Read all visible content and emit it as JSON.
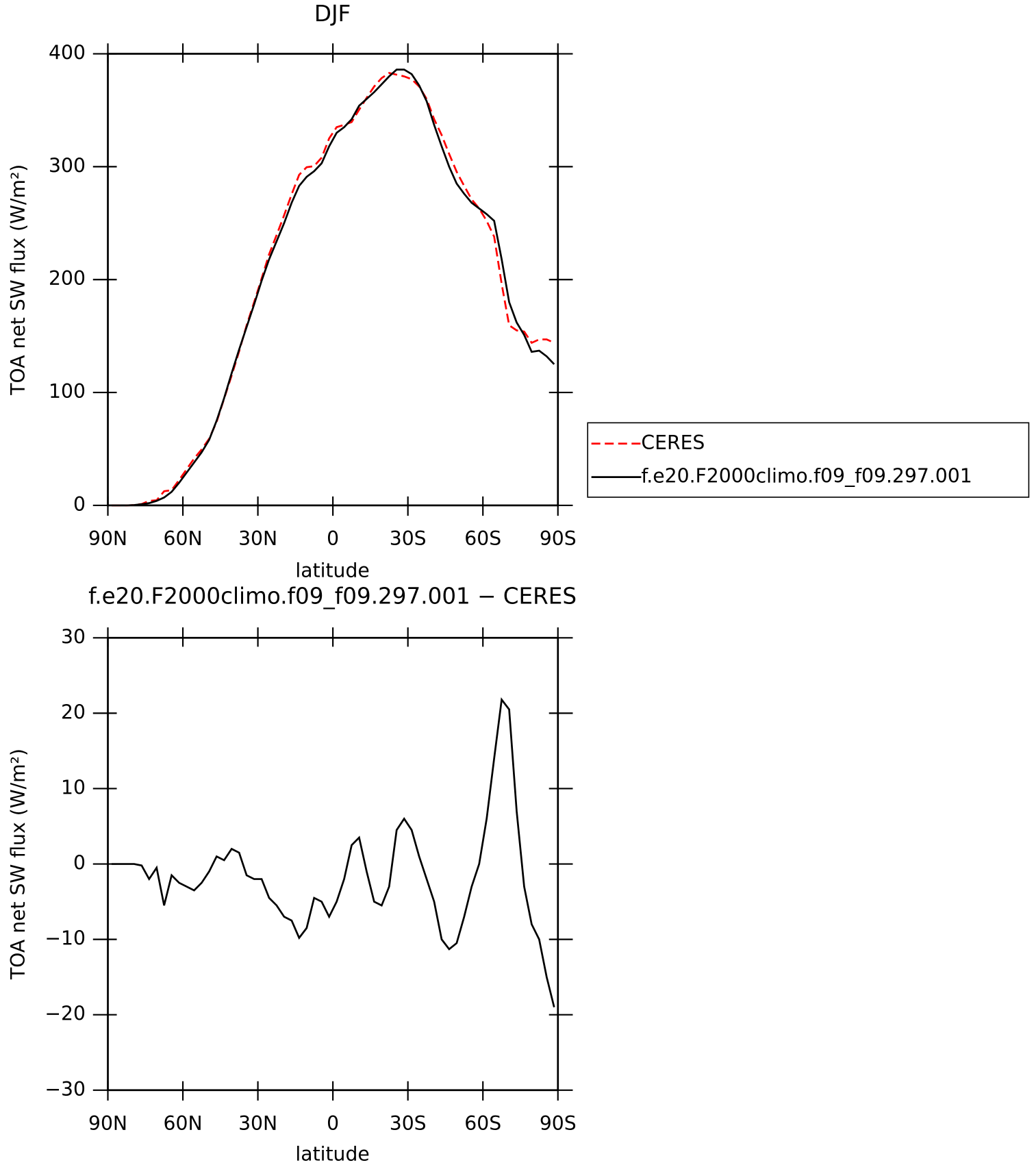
{
  "chart_data": [
    {
      "type": "line",
      "title": "DJF",
      "xlabel": "latitude",
      "ylabel": "TOA net SW flux (W/m²)",
      "x": [
        88.5,
        85.5,
        82.5,
        79.5,
        76.5,
        73.5,
        70.5,
        67.5,
        64.5,
        61.5,
        58.5,
        55.5,
        52.5,
        49.5,
        46.5,
        43.5,
        40.5,
        37.5,
        34.5,
        31.5,
        28.5,
        25.5,
        22.5,
        19.5,
        16.5,
        13.5,
        10.5,
        7.5,
        4.5,
        1.5,
        -1.5,
        -4.5,
        -7.5,
        -10.5,
        -13.5,
        -16.5,
        -19.5,
        -22.5,
        -25.5,
        -28.5,
        -31.5,
        -34.5,
        -37.5,
        -40.5,
        -43.5,
        -46.5,
        -49.5,
        -52.5,
        -55.5,
        -58.5,
        -61.5,
        -64.5,
        -67.5,
        -70.5,
        -73.5,
        -76.5,
        -79.5,
        -82.5,
        -85.5,
        -88.5
      ],
      "series": [
        {
          "name": "CERES",
          "color": "#ff0000",
          "dashed": true,
          "values": [
            0,
            0,
            0,
            0.3,
            1.2,
            4,
            4.5,
            12.5,
            13.5,
            22.5,
            32,
            41.5,
            49.5,
            59,
            74,
            94.5,
            115,
            136.5,
            159.5,
            180,
            201,
            222.5,
            239.5,
            257,
            275.5,
            292.8,
            299.5,
            300.5,
            308,
            325,
            335,
            337,
            339.5,
            350.5,
            361,
            371,
            378.5,
            383,
            381.5,
            380,
            377.5,
            371,
            360,
            342,
            328,
            311.3,
            295.5,
            283,
            271,
            263,
            252,
            238,
            196.2,
            159.5,
            155,
            154,
            144,
            147,
            147,
            144
          ]
        },
        {
          "name": "f.e20.F2000climo.f09_f09.297.001",
          "color": "#000000",
          "dashed": false,
          "values": [
            0,
            0,
            0,
            0.3,
            1,
            2,
            4,
            7,
            12,
            20,
            29,
            38,
            47,
            58,
            75,
            95,
            117,
            138,
            158,
            178,
            199,
            218,
            234,
            250,
            268,
            283,
            291,
            296,
            303,
            318,
            330,
            335,
            342,
            354,
            360,
            366,
            373,
            380,
            386,
            386,
            382,
            372,
            358,
            337,
            318,
            300,
            285,
            276,
            268,
            263,
            258,
            252,
            218,
            180,
            162,
            151,
            136,
            137,
            132,
            125
          ]
        }
      ],
      "xlim": [
        90,
        -90
      ],
      "xticks": [
        {
          "value": 90,
          "label": "90N"
        },
        {
          "value": 60,
          "label": "60N"
        },
        {
          "value": 30,
          "label": "30N"
        },
        0,
        {
          "value": -30,
          "label": "30S"
        },
        {
          "value": -60,
          "label": "60S"
        },
        {
          "value": -90,
          "label": "90S"
        }
      ],
      "ylim": [
        0,
        400
      ],
      "yticks": [
        0,
        100,
        200,
        300,
        400
      ],
      "legend": "right"
    },
    {
      "type": "line",
      "title": "f.e20.F2000climo.f09_f09.297.001 − CERES",
      "xlabel": "latitude",
      "ylabel": "TOA net SW flux (W/m²)",
      "x": [
        88.5,
        85.5,
        82.5,
        79.5,
        76.5,
        73.5,
        70.5,
        67.5,
        64.5,
        61.5,
        58.5,
        55.5,
        52.5,
        49.5,
        46.5,
        43.5,
        40.5,
        37.5,
        34.5,
        31.5,
        28.5,
        25.5,
        22.5,
        19.5,
        16.5,
        13.5,
        10.5,
        7.5,
        4.5,
        1.5,
        -1.5,
        -4.5,
        -7.5,
        -10.5,
        -13.5,
        -16.5,
        -19.5,
        -22.5,
        -25.5,
        -28.5,
        -31.5,
        -34.5,
        -37.5,
        -40.5,
        -43.5,
        -46.5,
        -49.5,
        -52.5,
        -55.5,
        -58.5,
        -61.5,
        -64.5,
        -67.5,
        -70.5,
        -73.5,
        -76.5,
        -79.5,
        -82.5,
        -85.5,
        -88.5
      ],
      "series": [
        {
          "color": "#000000",
          "dashed": false,
          "values": [
            0,
            0,
            0,
            0,
            -0.2,
            -2,
            -0.5,
            -5.5,
            -1.5,
            -2.5,
            -3,
            -3.5,
            -2.5,
            -1,
            1,
            0.5,
            2,
            1.5,
            -1.5,
            -2,
            -2,
            -4.5,
            -5.5,
            -7,
            -7.5,
            -9.8,
            -8.5,
            -4.5,
            -5,
            -7,
            -5,
            -2,
            2.5,
            3.5,
            -1,
            -5,
            -5.5,
            -3,
            4.5,
            6,
            4.5,
            1,
            -2,
            -5,
            -10,
            -11.3,
            -10.5,
            -7,
            -3,
            0,
            6,
            14,
            21.8,
            20.5,
            7,
            -3,
            -8,
            -10,
            -15,
            -19
          ]
        }
      ],
      "xlim": [
        90,
        -90
      ],
      "xticks": [
        {
          "value": 90,
          "label": "90N"
        },
        {
          "value": 60,
          "label": "60N"
        },
        {
          "value": 30,
          "label": "30N"
        },
        0,
        {
          "value": -30,
          "label": "30S"
        },
        {
          "value": -60,
          "label": "60S"
        },
        {
          "value": -90,
          "label": "90S"
        }
      ],
      "ylim": [
        -30,
        30
      ],
      "yticks": [
        {
          "value": -30,
          "label": "−30"
        },
        {
          "value": -20,
          "label": "−20"
        },
        {
          "value": -10,
          "label": "−10"
        },
        0,
        10,
        20,
        30
      ]
    }
  ]
}
